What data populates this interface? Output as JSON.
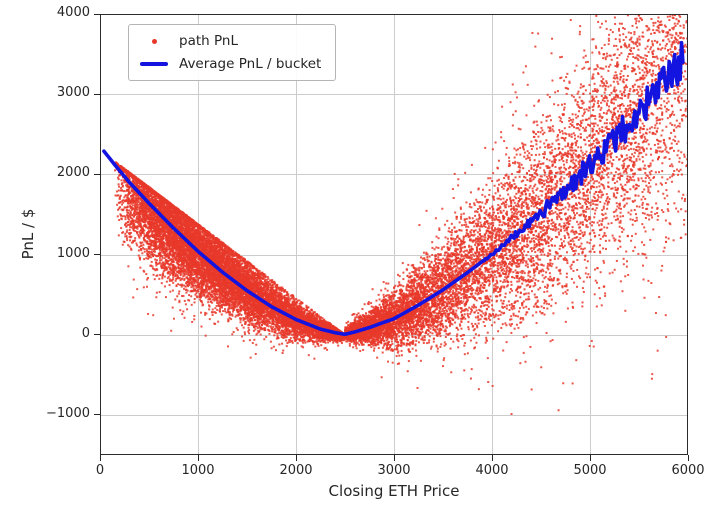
{
  "chart_data": {
    "type": "scatter",
    "title": "",
    "xlabel": "Closing ETH Price",
    "ylabel": "PnL / $",
    "xlim": [
      0,
      6000
    ],
    "ylim": [
      -1500,
      4000
    ],
    "grid": true,
    "legend_position": "upper left",
    "x_ticks": {
      "values": [
        0,
        1000,
        2000,
        3000,
        4000,
        5000,
        6000
      ],
      "labels": [
        "0",
        "1000",
        "2000",
        "3000",
        "4000",
        "5000",
        "6000"
      ]
    },
    "y_ticks": {
      "values": [
        -1000,
        0,
        1000,
        2000,
        3000,
        4000
      ],
      "labels": [
        "−1000",
        "0",
        "1000",
        "2000",
        "3000",
        "4000"
      ]
    },
    "style": {
      "grid_color": "#cccccc",
      "frame_color": "#2b2b2b",
      "tick_color": "#262626",
      "background": "#ffffff",
      "scatter_color": "#e8382a",
      "line_color": "#1414e1"
    },
    "series": [
      {
        "name": "path PnL",
        "kind": "scatter",
        "color": "#e8382a",
        "alpha": 0.85,
        "marker_size": 2,
        "generator": {
          "seed": 1337,
          "n": 22000,
          "x": {
            "mix_uniform_right": 0.17,
            "uniform_range": [
              2550,
              6000
            ],
            "lognormal_median": 1750,
            "lognormal_sigma": 0.85,
            "min": 25,
            "max": 6000
          },
          "y": {
            "pivot": 2500,
            "spread_left_base": 70,
            "spread_left_k": 0.3,
            "spread_right_base": 70,
            "spread_right_k": 0.52,
            "upper_env_left_start": 2300,
            "outlier_prob": 0.12,
            "outlier_scale": 1.4,
            "edge_jitter": 35
          }
        }
      },
      {
        "name": "Average PnL / bucket",
        "kind": "line",
        "color": "#1414e1",
        "width": 3.6,
        "avg_points": [
          [
            40,
            2290
          ],
          [
            150,
            2120
          ],
          [
            300,
            1900
          ],
          [
            500,
            1640
          ],
          [
            750,
            1330
          ],
          [
            1000,
            1040
          ],
          [
            1250,
            780
          ],
          [
            1500,
            550
          ],
          [
            1750,
            350
          ],
          [
            2000,
            190
          ],
          [
            2250,
            70
          ],
          [
            2400,
            25
          ],
          [
            2500,
            5
          ],
          [
            2600,
            35
          ],
          [
            2750,
            90
          ],
          [
            3000,
            200
          ],
          [
            3250,
            370
          ],
          [
            3500,
            560
          ],
          [
            3750,
            775
          ],
          [
            4000,
            1005
          ],
          [
            4250,
            1250
          ],
          [
            4500,
            1515
          ],
          [
            4750,
            1805
          ],
          [
            5000,
            2115
          ],
          [
            5250,
            2435
          ],
          [
            5500,
            2765
          ],
          [
            5700,
            3040
          ],
          [
            5850,
            3290
          ],
          [
            5950,
            3420
          ]
        ],
        "jag": {
          "seed": 99,
          "start_x": 3850,
          "full_x": 5950,
          "max_amp": 255,
          "step": 14
        }
      }
    ]
  }
}
